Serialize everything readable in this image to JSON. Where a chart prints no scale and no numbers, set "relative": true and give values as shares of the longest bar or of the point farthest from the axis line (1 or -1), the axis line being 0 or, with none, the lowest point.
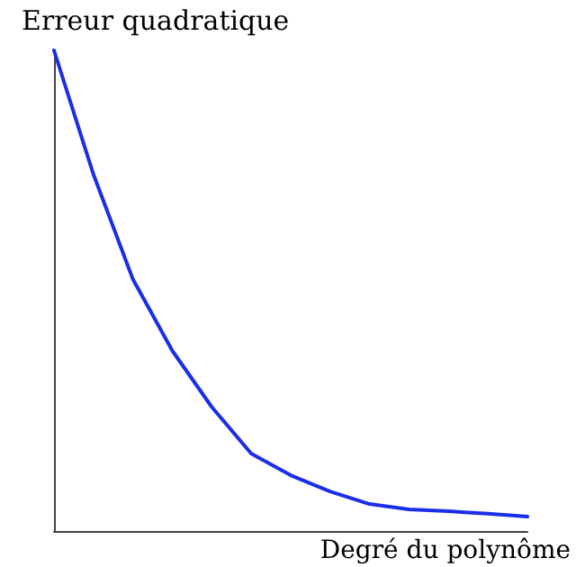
{
  "chart_data": {
    "type": "line",
    "relative": true,
    "xlabel": "Degré du polynôme",
    "ylabel": "Erreur quadratique",
    "categories": [
      null,
      null,
      null,
      null,
      null,
      null,
      null,
      null,
      null,
      null,
      null,
      null,
      null
    ],
    "series": [
      {
        "color": "#1a2ee8",
        "values": [
          1,
          0.742,
          0.524,
          0.375,
          0.258,
          0.161,
          0.116,
          0.082,
          0.056,
          0.045,
          0.041,
          0.036,
          0.03
        ]
      }
    ],
    "marker": "none",
    "line_style": "solid"
  }
}
